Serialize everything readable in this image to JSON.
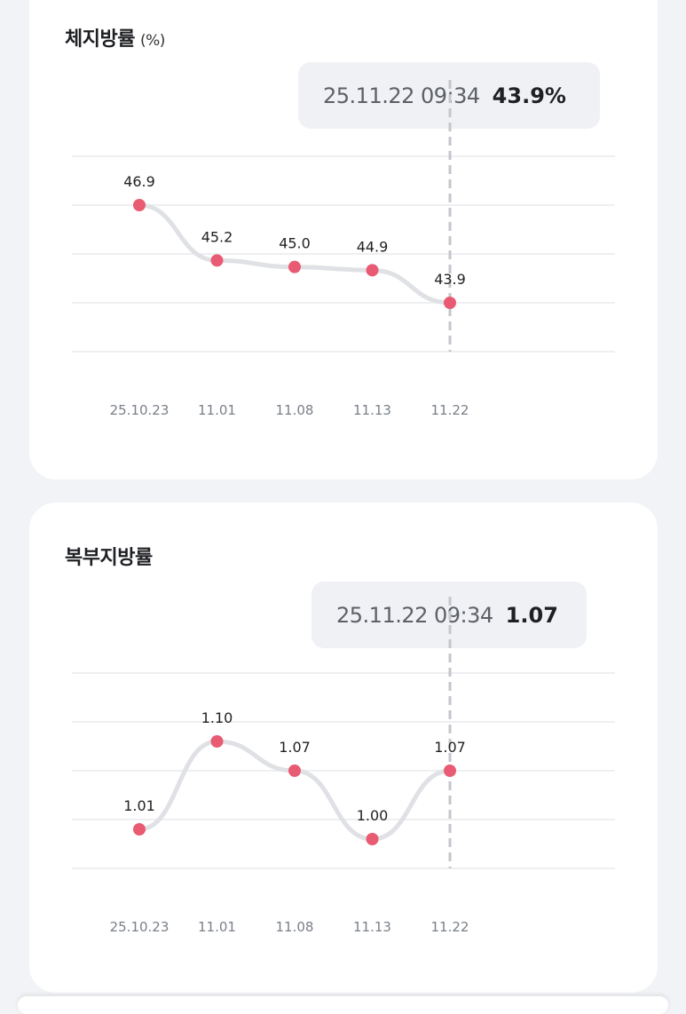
{
  "charts": [
    {
      "title": "체지방률",
      "unit": "(%)",
      "tooltip": {
        "time": "25.11.22 09:34",
        "value": "43.9%"
      },
      "selected_index": 4
    },
    {
      "title": "복부지방률",
      "unit": "",
      "tooltip": {
        "time": "25.11.22 09:34",
        "value": "1.07"
      },
      "selected_index": 4
    }
  ],
  "colors": {
    "line": "#dfe1e5",
    "point": "#e85b72",
    "grid": "#e8eaee",
    "guide": "#c3c6cb",
    "axis_text": "#7a8089",
    "label_text": "#222222"
  },
  "chart_data": [
    {
      "type": "line",
      "title": "체지방률 (%)",
      "categories": [
        "25.10.23",
        "11.01",
        "11.08",
        "11.13",
        "11.22"
      ],
      "x": [
        "25.10.23",
        "11.01",
        "11.08",
        "11.13",
        "11.22"
      ],
      "labels": [
        "46.9",
        "45.2",
        "45.0",
        "44.9",
        "43.9"
      ],
      "series": [
        {
          "values": [
            46.9,
            45.2,
            45.0,
            44.9,
            43.9
          ]
        }
      ],
      "ylim": [
        42.4,
        48.4
      ],
      "grid": true,
      "legend": "none"
    },
    {
      "type": "line",
      "title": "복부지방률",
      "categories": [
        "25.10.23",
        "11.01",
        "11.08",
        "11.13",
        "11.22"
      ],
      "x": [
        "25.10.23",
        "11.01",
        "11.08",
        "11.13",
        "11.22"
      ],
      "labels": [
        "1.01",
        "1.10",
        "1.07",
        "1.00",
        "1.07"
      ],
      "series": [
        {
          "values": [
            1.01,
            1.1,
            1.07,
            1.0,
            1.07
          ]
        }
      ],
      "ylim": [
        0.97,
        1.17
      ],
      "grid": true,
      "legend": "none"
    }
  ]
}
